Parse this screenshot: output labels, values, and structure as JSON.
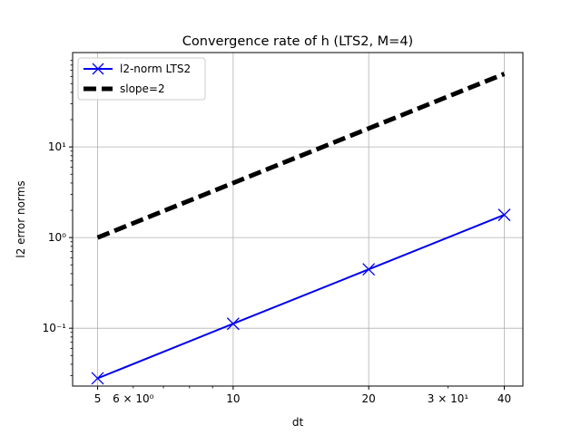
{
  "chart_data": {
    "type": "line",
    "title": "Convergence rate of h (LTS2, M=4)",
    "xlabel": "dt",
    "ylabel": "l2 error norms",
    "x_scale": "log",
    "y_scale": "log",
    "xlim": [
      4.4,
      44
    ],
    "ylim": [
      0.023,
      110
    ],
    "grid": true,
    "legend_position": "top-left",
    "x_major_ticks": [
      {
        "value": 5,
        "label": "5"
      },
      {
        "value": 10,
        "label": "10"
      },
      {
        "value": 20,
        "label": "20"
      },
      {
        "value": 40,
        "label": "40"
      }
    ],
    "x_minor_ticks": [
      {
        "value": 6,
        "label": "6 × 10⁰"
      },
      {
        "value": 30,
        "label": "3 × 10¹"
      }
    ],
    "x_minor_unlabeled": [
      7,
      8,
      9
    ],
    "y_major_ticks": [
      {
        "value": 0.1,
        "label": "10⁻¹"
      },
      {
        "value": 1,
        "label": "10⁰"
      },
      {
        "value": 10,
        "label": "10¹"
      }
    ],
    "series": [
      {
        "name": "l2-norm LTS2",
        "color": "#0000ee",
        "marker": "x",
        "style": "solid",
        "x": [
          5,
          10,
          20,
          40
        ],
        "y": [
          0.028,
          0.112,
          0.446,
          1.78
        ]
      },
      {
        "name": "slope=2",
        "color": "#000000",
        "marker": "none",
        "style": "dashed",
        "x": [
          5,
          10,
          20,
          40
        ],
        "y": [
          1,
          4,
          16,
          64
        ]
      }
    ]
  }
}
